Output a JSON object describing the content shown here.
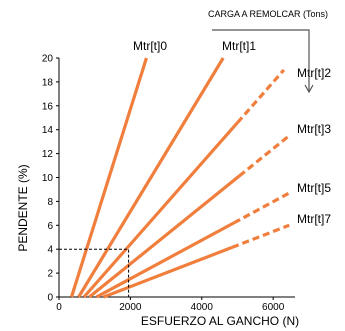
{
  "chart_data": {
    "type": "line",
    "title": "CARGA A REMOLCAR (Tons)",
    "xlabel": "ESFUERZO AL GANCHO (N)",
    "ylabel": "PENDENTE (%)",
    "xlim": [
      0,
      6500
    ],
    "ylim": [
      0,
      20
    ],
    "xticks": [
      0,
      2000,
      4000,
      6000
    ],
    "yticks": [
      0,
      2,
      4,
      6,
      8,
      10,
      12,
      14,
      16,
      18,
      20
    ],
    "grid": false,
    "line_color": "#f07e3c",
    "series": [
      {
        "name": "Mtr[t]0",
        "points": [
          [
            350,
            0
          ],
          [
            2450,
            20
          ]
        ],
        "dashed_from_x": null
      },
      {
        "name": "Mtr[t]1",
        "points": [
          [
            550,
            0
          ],
          [
            4600,
            20
          ]
        ],
        "dashed_from_x": null
      },
      {
        "name": "Mtr[t]2",
        "points": [
          [
            700,
            0
          ],
          [
            6300,
            19
          ]
        ],
        "dashed_from_x": 5000
      },
      {
        "name": "Mtr[t]3",
        "points": [
          [
            850,
            0
          ],
          [
            6450,
            13.5
          ]
        ],
        "dashed_from_x": 5050
      },
      {
        "name": "Mtr[t]5",
        "points": [
          [
            1050,
            0
          ],
          [
            6450,
            8.7
          ]
        ],
        "dashed_from_x": 4900
      },
      {
        "name": "Mtr[t]7",
        "points": [
          [
            1250,
            0
          ],
          [
            6450,
            6
          ]
        ],
        "dashed_from_x": 4850
      }
    ],
    "reference_point": {
      "x": 1950,
      "y": 4
    },
    "legend": "inline labels at line ends"
  }
}
